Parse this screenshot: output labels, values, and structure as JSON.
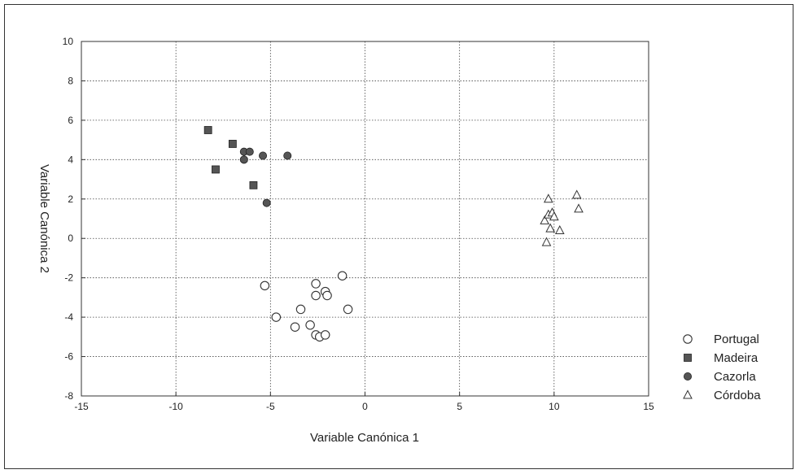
{
  "chart_data": {
    "type": "scatter",
    "xlabel": "Variable Canónica 1",
    "ylabel": "Variable Canónica 2",
    "xlim": [
      -15,
      15
    ],
    "ylim": [
      -8,
      10
    ],
    "xticks": [
      -15,
      -10,
      -5,
      0,
      5,
      10,
      15
    ],
    "yticks": [
      -8,
      -6,
      -4,
      -2,
      0,
      2,
      4,
      6,
      8,
      10
    ],
    "xtick_labels": [
      "-15",
      "-10",
      "-5",
      "0",
      "5",
      "10",
      "15"
    ],
    "ytick_labels": [
      "-8",
      "-6",
      "-4",
      "-2",
      "0",
      "2",
      "4",
      "6",
      "8",
      "10"
    ],
    "grid": "dotted",
    "legend_position": "right",
    "series": [
      {
        "name": "Portugal",
        "marker": "circle",
        "color": "#ffffff",
        "points": [
          [
            -5.3,
            -2.4
          ],
          [
            -4.7,
            -4.0
          ],
          [
            -3.7,
            -4.5
          ],
          [
            -3.4,
            -3.6
          ],
          [
            -2.9,
            -4.4
          ],
          [
            -2.6,
            -2.3
          ],
          [
            -2.6,
            -2.9
          ],
          [
            -2.6,
            -4.9
          ],
          [
            -2.4,
            -5.0
          ],
          [
            -2.1,
            -4.9
          ],
          [
            -2.1,
            -2.7
          ],
          [
            -2.0,
            -2.9
          ],
          [
            -1.2,
            -1.9
          ],
          [
            -0.9,
            -3.6
          ]
        ]
      },
      {
        "name": "Madeira",
        "marker": "square",
        "color": "#555555",
        "points": [
          [
            -8.3,
            5.5
          ],
          [
            -7.9,
            3.5
          ],
          [
            -7.0,
            4.8
          ],
          [
            -5.9,
            2.7
          ]
        ]
      },
      {
        "name": "Cazorla",
        "marker": "diamond",
        "color": "#555555",
        "points": [
          [
            -6.4,
            4.4
          ],
          [
            -6.4,
            4.0
          ],
          [
            -6.1,
            4.4
          ],
          [
            -5.4,
            4.2
          ],
          [
            -4.1,
            4.2
          ],
          [
            -5.2,
            1.8
          ]
        ]
      },
      {
        "name": "Córdoba",
        "marker": "triangle",
        "color": "#ffffff",
        "points": [
          [
            9.5,
            0.9
          ],
          [
            9.7,
            1.2
          ],
          [
            9.7,
            2.0
          ],
          [
            9.8,
            0.5
          ],
          [
            9.9,
            1.3
          ],
          [
            10.0,
            1.1
          ],
          [
            10.3,
            0.4
          ],
          [
            9.6,
            -0.2
          ],
          [
            11.2,
            2.2
          ],
          [
            11.3,
            1.5
          ]
        ]
      }
    ]
  }
}
